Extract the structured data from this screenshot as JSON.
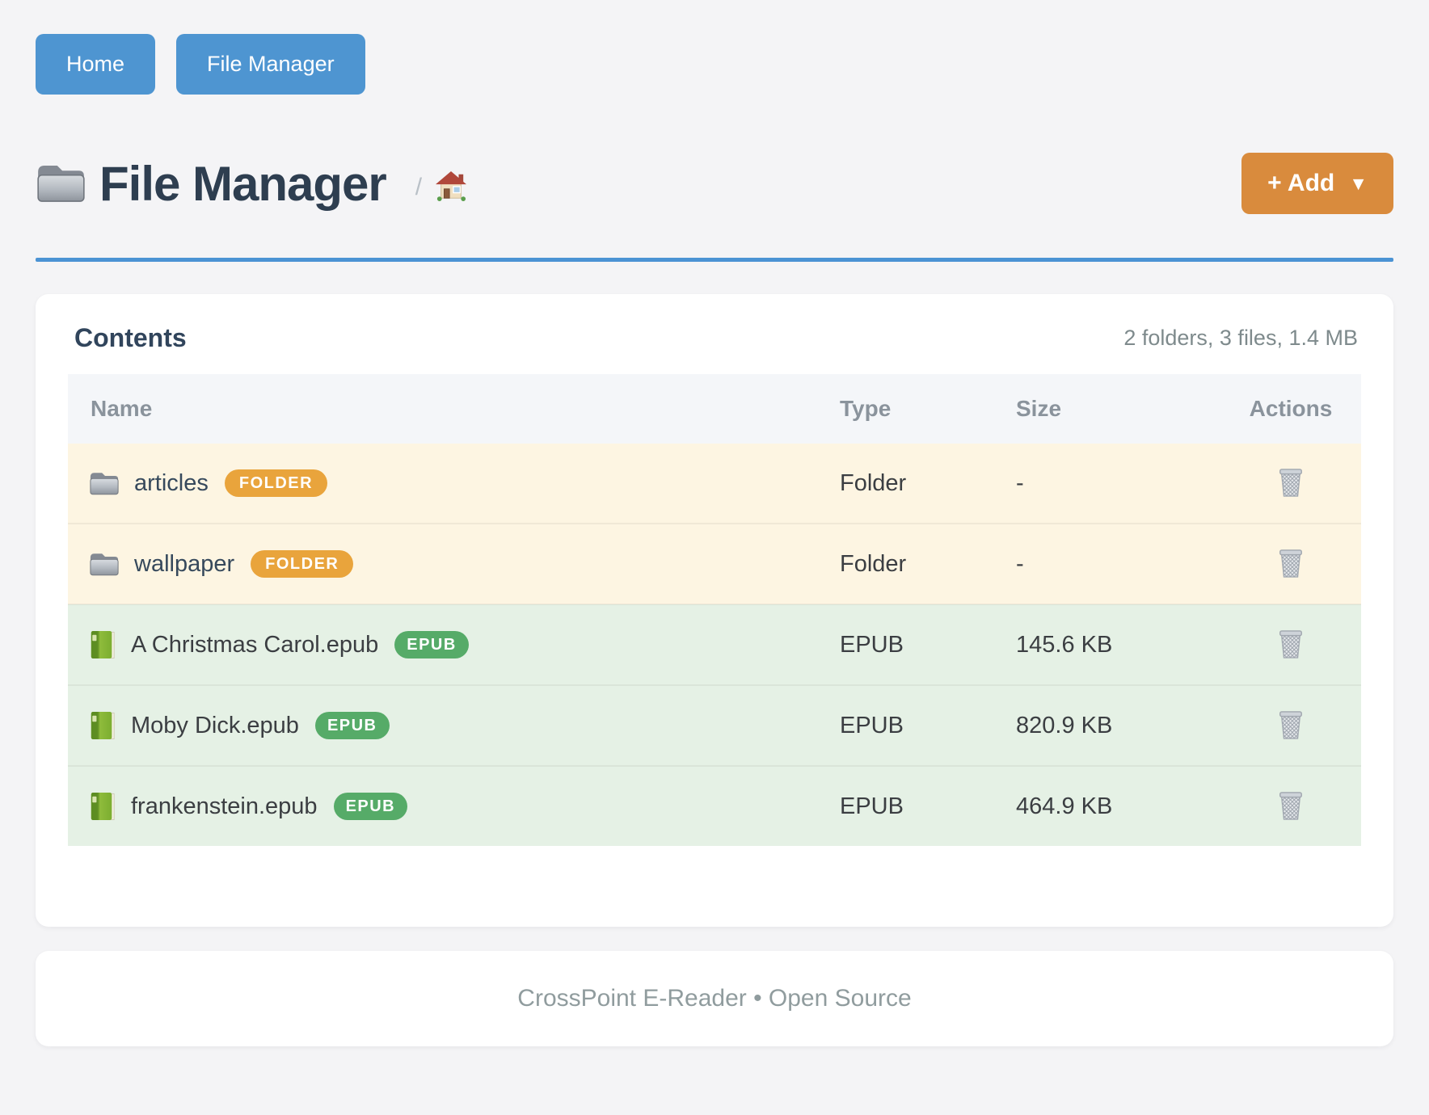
{
  "nav": {
    "buttons": [
      {
        "label": "Home"
      },
      {
        "label": "File Manager"
      }
    ]
  },
  "header": {
    "title": "File Manager",
    "title_icon": "folder-icon",
    "breadcrumb_separator": "/",
    "breadcrumb_home_icon": "house-icon",
    "add_button": {
      "label": "+ Add",
      "caret": "▼"
    }
  },
  "contents": {
    "title": "Contents",
    "summary": "2 folders, 3 files, 1.4 MB",
    "columns": [
      "Name",
      "Type",
      "Size",
      "Actions"
    ],
    "action_icon": "trash-icon",
    "rows": [
      {
        "name": "articles",
        "kind": "folder",
        "icon": "folder-icon",
        "badge": "FOLDER",
        "type": "Folder",
        "size": "-"
      },
      {
        "name": "wallpaper",
        "kind": "folder",
        "icon": "folder-icon",
        "badge": "FOLDER",
        "type": "Folder",
        "size": "-"
      },
      {
        "name": "A Christmas Carol.epub",
        "kind": "file",
        "icon": "book-icon",
        "badge": "EPUB",
        "type": "EPUB",
        "size": "145.6 KB"
      },
      {
        "name": "Moby Dick.epub",
        "kind": "file",
        "icon": "book-icon",
        "badge": "EPUB",
        "type": "EPUB",
        "size": "820.9 KB"
      },
      {
        "name": "frankenstein.epub",
        "kind": "file",
        "icon": "book-icon",
        "badge": "EPUB",
        "type": "EPUB",
        "size": "464.9 KB"
      }
    ]
  },
  "footer": {
    "text": "CrossPoint E-Reader • Open Source"
  },
  "colors": {
    "accent_blue": "#4b93d4",
    "button_blue": "#4e95d1",
    "add_orange": "#d98b3d",
    "badge_orange": "#e9a43c",
    "badge_green": "#56ab68",
    "folder_row_bg": "#fdf5e2",
    "file_row_bg": "#e5f1e5"
  }
}
